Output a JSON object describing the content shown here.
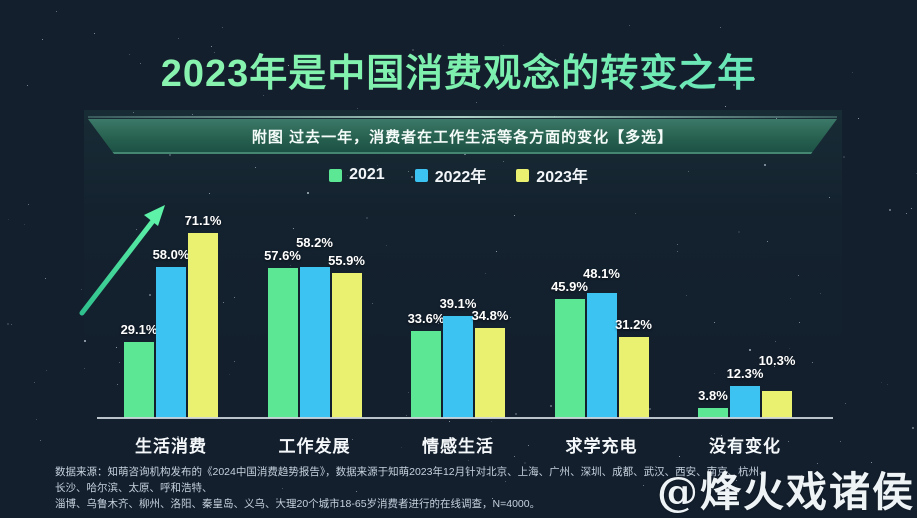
{
  "page": {
    "title": "2023年是中国消费观念的转变之年",
    "subtitle": "附图  过去一年，消费者在工作生活等各方面的变化【多选】",
    "watermark": "@烽火戏诸侯"
  },
  "footer": {
    "line1": "数据来源：知萌咨询机构发布的《2024中国消费趋势报告》，数据来源于知萌2023年12月针对北京、上海、广州、深圳、成都、武汉、西安、南京、杭州、长沙、哈尔滨、太原、呼和浩特、",
    "line2": "淄博、乌鲁木齐、柳州、洛阳、秦皇岛、义乌、大理20个城市18-65岁消费者进行的在线调查，N=4000。"
  },
  "colors": {
    "background": "#131f2d",
    "title_gradient_start": "#8ff5b0",
    "title_gradient_end": "#59dfbf",
    "band_top": "#3c7968",
    "band_bottom": "#1a4f44",
    "axis": "#cdd5db",
    "arrow": "#57eda6",
    "series_2021": "#5ce794",
    "series_2022": "#3cc3f2",
    "series_2023": "#eaf171"
  },
  "chart_data": {
    "type": "bar",
    "title": "过去一年，消费者在工作生活等各方面的变化【多选】",
    "title_prefix": "附图",
    "categories": [
      "生活消费",
      "工作发展",
      "情感生活",
      "求学充电",
      "没有变化"
    ],
    "series": [
      {
        "name": "2021",
        "color": "#5ce794",
        "values": [
          29.1,
          57.6,
          33.6,
          45.9,
          3.8
        ]
      },
      {
        "name": "2022年",
        "color": "#3cc3f2",
        "values": [
          58.0,
          58.2,
          39.1,
          48.1,
          12.3
        ]
      },
      {
        "name": "2023年",
        "color": "#eaf171",
        "values": [
          71.1,
          55.9,
          34.8,
          31.2,
          10.3
        ]
      }
    ],
    "value_suffix": "%",
    "ylim": [
      0,
      80
    ],
    "grid": false,
    "legend_position": "top",
    "annotations": [
      "upward-trend-arrow near 生活消费 group"
    ]
  }
}
